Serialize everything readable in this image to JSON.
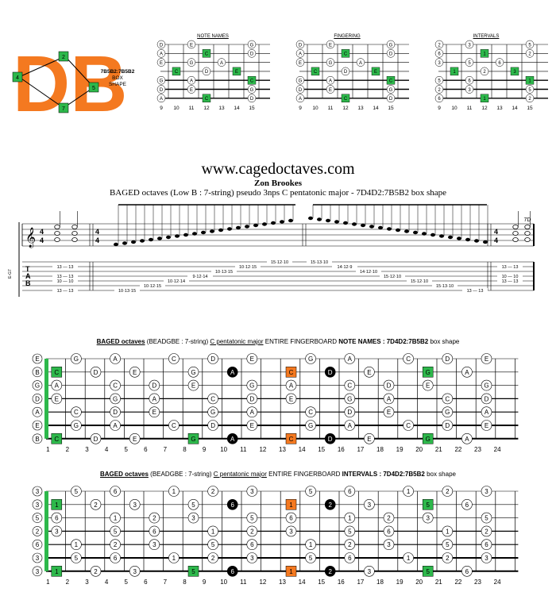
{
  "site": {
    "title": "www.cagedoctaves.com",
    "author": "Zon Brookes",
    "subtitle": "BAGED octaves (Low B : 7-string) pseudo 3nps C pentatonic major - 7D4D2:7B5B2 box shape"
  },
  "logo": {
    "letters": "DB",
    "caption_line1": "7B5B2:7B5B2",
    "caption_line2": "BOX",
    "caption_line3": "SHAPE",
    "nodes": [
      "2",
      "4",
      "5",
      "7"
    ],
    "colors": {
      "orange": "#F47920",
      "green": "#2DB84B"
    }
  },
  "mini": {
    "titles": [
      "NOTE NAMES",
      "FINGERING",
      "INTERVALS"
    ],
    "frets": [
      "9",
      "10",
      "11",
      "12",
      "13",
      "14",
      "15"
    ],
    "note_names": [
      [
        "D",
        "",
        "E",
        "",
        "",
        "",
        "G"
      ],
      [
        "A",
        "",
        "",
        "C",
        "",
        "",
        "D"
      ],
      [
        "E",
        "",
        "G",
        "",
        "A",
        "",
        ""
      ],
      [
        "",
        "C",
        "",
        "D",
        "",
        "E",
        ""
      ],
      [
        "G",
        "",
        "A",
        "",
        "",
        "",
        "C"
      ],
      [
        "D",
        "",
        "E",
        "",
        "",
        "",
        "G"
      ],
      [
        "A",
        "",
        "",
        "C",
        "",
        "",
        "D"
      ]
    ],
    "fingering": [
      [
        "D",
        "",
        "E",
        "",
        "",
        "",
        "G"
      ],
      [
        "A",
        "",
        "",
        "C",
        "",
        "",
        "D"
      ],
      [
        "E",
        "",
        "G",
        "",
        "A",
        "",
        ""
      ],
      [
        "",
        "C",
        "",
        "D",
        "",
        "E",
        ""
      ],
      [
        "G",
        "",
        "A",
        "",
        "",
        "",
        "C"
      ],
      [
        "D",
        "",
        "E",
        "",
        "",
        "",
        "G"
      ],
      [
        "A",
        "",
        "",
        "C",
        "",
        "",
        "D"
      ]
    ],
    "intervals": [
      [
        "2",
        "",
        "3",
        "",
        "",
        "",
        "5"
      ],
      [
        "6",
        "",
        "",
        "1",
        "",
        "",
        "2"
      ],
      [
        "3",
        "",
        "5",
        "",
        "6",
        "",
        ""
      ],
      [
        "",
        "1",
        "",
        "2",
        "",
        "3",
        ""
      ],
      [
        "5",
        "",
        "6",
        "",
        "",
        "",
        "1"
      ],
      [
        "2",
        "",
        "3",
        "",
        "",
        "",
        "5"
      ],
      [
        "6",
        "",
        "",
        "1",
        "",
        "",
        "2"
      ]
    ]
  },
  "staff": {
    "clef_label": "E-G7",
    "time_top": "4",
    "time_bot": "4",
    "tab_letters": [
      "T",
      "A",
      "B"
    ],
    "end_mark": "7D",
    "tab_groups": [
      "13 — 13",
      "13 — 13",
      "10 — 10",
      "13 — 13",
      "10·13·15",
      "10·12·15",
      "10·12·14",
      "9·12·14",
      "10·13·15",
      "10·12·15",
      "15·12·10",
      "15·13·10",
      "14·12·9",
      "14·12·10",
      "15·12·10",
      "15·12·10",
      "15·13·10",
      "13 — 13",
      "13 — 13",
      "10 — 10",
      "13 — 13"
    ]
  },
  "full_names": {
    "title_bold": "BAGED octaves",
    "title_mid": "(BEADGBE : 7-string)",
    "title_ul": "C pentatonic major",
    "title_ul2": "ENTIRE FINGERBOARD",
    "title_tail": "NOTE NAMES",
    "title_shape": "7D4D2:7B5B2",
    "title_end": "box shape",
    "frets": [
      "1",
      "2",
      "3",
      "4",
      "5",
      "6",
      "7",
      "8",
      "9",
      "10",
      "11",
      "12",
      "13",
      "14",
      "15",
      "16",
      "17",
      "18",
      "19",
      "20",
      "21",
      "22",
      "23",
      "24"
    ],
    "open": [
      "E",
      "B",
      "G",
      "D",
      "A",
      "E",
      "B"
    ],
    "strings": [
      [
        "",
        "G",
        "",
        "A",
        "",
        "",
        "C",
        "",
        "D",
        "",
        "E",
        "",
        "",
        "G",
        "",
        "A",
        "",
        "",
        "C",
        "",
        "D",
        "",
        "E",
        ""
      ],
      [
        "C",
        "",
        "D",
        "",
        "E",
        "",
        "",
        "G",
        "",
        "A",
        "",
        "",
        "C",
        "",
        "D",
        "",
        "E",
        "",
        "",
        "G",
        "",
        "A",
        "",
        ""
      ],
      [
        "A",
        "",
        "",
        "C",
        "",
        "D",
        "",
        "E",
        "",
        "",
        "G",
        "",
        "A",
        "",
        "",
        "C",
        "",
        "D",
        "",
        "E",
        "",
        "",
        "G",
        ""
      ],
      [
        "E",
        "",
        "",
        "G",
        "",
        "A",
        "",
        "",
        "C",
        "",
        "D",
        "",
        "E",
        "",
        "",
        "G",
        "",
        "A",
        "",
        "",
        "C",
        "",
        "D",
        ""
      ],
      [
        "",
        "C",
        "",
        "D",
        "",
        "E",
        "",
        "",
        "G",
        "",
        "A",
        "",
        "",
        "C",
        "",
        "D",
        "",
        "E",
        "",
        "",
        "G",
        "",
        "A",
        ""
      ],
      [
        "",
        "G",
        "",
        "A",
        "",
        "",
        "C",
        "",
        "D",
        "",
        "E",
        "",
        "",
        "G",
        "",
        "A",
        "",
        "",
        "C",
        "",
        "D",
        "",
        "E",
        ""
      ],
      [
        "C",
        "",
        "D",
        "",
        "E",
        "",
        "",
        "G",
        "",
        "A",
        "",
        "",
        "C",
        "",
        "D",
        "",
        "E",
        "",
        "",
        "G",
        "",
        "A",
        "",
        ""
      ]
    ]
  },
  "full_intervals": {
    "title_bold": "BAGED octaves",
    "title_mid": "(BEADGBE : 7-string)",
    "title_ul": "C pentatonic major",
    "title_ul2": "ENTIRE FINGERBOARD",
    "title_tail": "INTERVALS",
    "title_shape": "7D4D2:7B5B2",
    "title_end": "box shape",
    "open": [
      "3",
      "3",
      "5",
      "2",
      "6",
      "3",
      "3"
    ],
    "strings": [
      [
        "",
        "5",
        "",
        "6",
        "",
        "",
        "1",
        "",
        "2",
        "",
        "3",
        "",
        "",
        "5",
        "",
        "6",
        "",
        "",
        "1",
        "",
        "2",
        "",
        "3",
        ""
      ],
      [
        "1",
        "",
        "2",
        "",
        "3",
        "",
        "",
        "5",
        "",
        "6",
        "",
        "",
        "1",
        "",
        "2",
        "",
        "3",
        "",
        "",
        "5",
        "",
        "6",
        "",
        ""
      ],
      [
        "6",
        "",
        "",
        "1",
        "",
        "2",
        "",
        "3",
        "",
        "",
        "5",
        "",
        "6",
        "",
        "",
        "1",
        "",
        "2",
        "",
        "3",
        "",
        "",
        "5",
        ""
      ],
      [
        "3",
        "",
        "",
        "5",
        "",
        "6",
        "",
        "",
        "1",
        "",
        "2",
        "",
        "3",
        "",
        "",
        "5",
        "",
        "6",
        "",
        "",
        "1",
        "",
        "2",
        ""
      ],
      [
        "",
        "1",
        "",
        "2",
        "",
        "3",
        "",
        "",
        "5",
        "",
        "6",
        "",
        "",
        "1",
        "",
        "2",
        "",
        "3",
        "",
        "",
        "5",
        "",
        "6",
        ""
      ],
      [
        "",
        "5",
        "",
        "6",
        "",
        "",
        "1",
        "",
        "2",
        "",
        "3",
        "",
        "",
        "5",
        "",
        "6",
        "",
        "",
        "1",
        "",
        "2",
        "",
        "3",
        ""
      ],
      [
        "1",
        "",
        "2",
        "",
        "3",
        "",
        "",
        "5",
        "",
        "6",
        "",
        "",
        "1",
        "",
        "2",
        "",
        "3",
        "",
        "",
        "5",
        "",
        "6",
        "",
        ""
      ]
    ]
  },
  "marks": {
    "green_cells": [
      [
        1,
        0
      ],
      [
        2,
        2
      ],
      [
        4,
        2
      ],
      [
        6,
        0
      ],
      [
        0,
        19
      ],
      [
        3,
        4
      ],
      [
        4,
        7
      ],
      [
        6,
        7
      ],
      [
        0,
        7
      ],
      [
        1,
        19
      ],
      [
        2,
        16
      ],
      [
        3,
        21
      ],
      [
        5,
        19
      ],
      [
        6,
        19
      ]
    ],
    "orange_cells": [
      [
        1,
        12
      ],
      [
        3,
        9
      ],
      [
        4,
        14
      ],
      [
        6,
        12
      ]
    ],
    "black_cells": [
      [
        0,
        9
      ],
      [
        0,
        11
      ],
      [
        0,
        14
      ],
      [
        1,
        9
      ],
      [
        1,
        14
      ],
      [
        2,
        8
      ],
      [
        2,
        11
      ],
      [
        2,
        13
      ],
      [
        3,
        11
      ],
      [
        3,
        13
      ],
      [
        4,
        9
      ],
      [
        4,
        11
      ],
      [
        5,
        9
      ],
      [
        5,
        11
      ],
      [
        5,
        14
      ],
      [
        6,
        9
      ],
      [
        6,
        14
      ]
    ],
    "colors": {
      "green": "#2DB84B",
      "orange": "#F47920",
      "black": "#000000"
    }
  }
}
